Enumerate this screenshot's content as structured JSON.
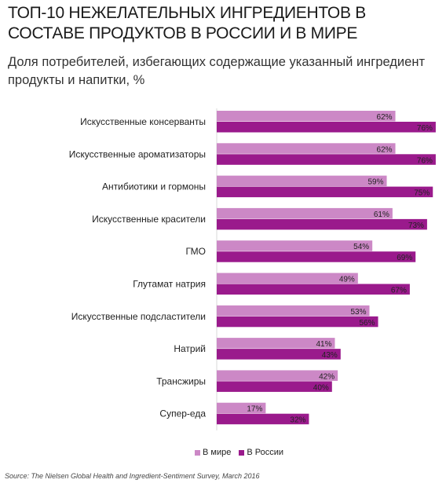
{
  "header": {
    "title": "ТОП-10 НЕЖЕЛАТЕЛЬНЫХ ИНГРЕДИЕНТОВ В СОСТАВЕ ПРОДУКТОВ В РОССИИ И В МИРЕ",
    "subtitle": "Доля потребителей, избегающих содержащие указанный ингредиент продукты и напитки, %"
  },
  "colors": {
    "world": "#cc88c6",
    "russia": "#9a1a8c"
  },
  "legend": {
    "world": "В мире",
    "russia": "В России"
  },
  "source": "Source: The Nielsen Global Health and Ingredient-Sentiment Survey, March 2016",
  "chart_data": {
    "type": "bar",
    "orientation": "horizontal",
    "categories": [
      "Искусственные консерванты",
      "Искусственные ароматизаторы",
      "Антибиотики и гормоны",
      "Искусственные красители",
      "ГМО",
      "Глутамат натрия",
      "Искусственные подсластители",
      "Натрий",
      "Трансжиры",
      "Супер-еда"
    ],
    "series": [
      {
        "name": "В мире",
        "values": [
          62,
          62,
          59,
          61,
          54,
          49,
          53,
          41,
          42,
          17
        ],
        "labels": [
          "62%",
          "62%",
          "59%",
          "61%",
          "54%",
          "49%",
          "53%",
          "41%",
          "42%",
          "17%"
        ]
      },
      {
        "name": "В России",
        "values": [
          76,
          76,
          75,
          73,
          69,
          67,
          56,
          43,
          40,
          32
        ],
        "labels": [
          "76%",
          "76%",
          "75%",
          "73%",
          "69%",
          "67%",
          "56%",
          "43%",
          "40%",
          "32%"
        ]
      }
    ],
    "grid": false,
    "legend_position": "bottom"
  }
}
